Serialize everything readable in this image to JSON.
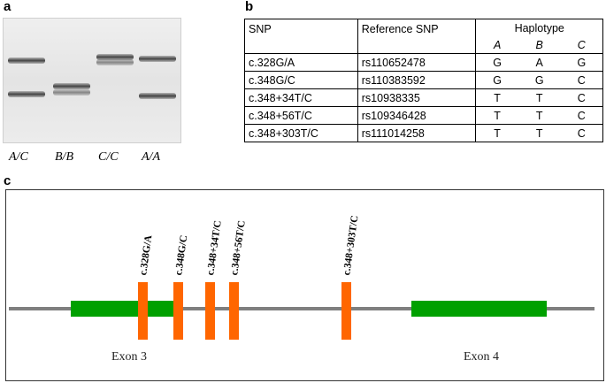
{
  "panels": {
    "a": {
      "letter": "a",
      "lanes": [
        {
          "label": "A/C",
          "bands": [
            "upper",
            "lower"
          ]
        },
        {
          "label": "B/B",
          "bands": [
            "middle"
          ]
        },
        {
          "label": "C/C",
          "bands": [
            "upper"
          ]
        },
        {
          "label": "A/A",
          "bands": [
            "upper",
            "lower"
          ]
        }
      ]
    },
    "b": {
      "letter": "b",
      "headers": {
        "snp": "SNP",
        "ref": "Reference SNP",
        "haplotype": "Haplotype"
      },
      "haplotypes": [
        "A",
        "B",
        "C"
      ],
      "rows": [
        {
          "snp": "c.328G/A",
          "ref": "rs110652478",
          "a": "G",
          "b": "A",
          "c": "G"
        },
        {
          "snp": "c.348G/C",
          "ref": "rs110383592",
          "a": "G",
          "b": "G",
          "c": "C"
        },
        {
          "snp": "c.348+34T/C",
          "ref": "rs10938335",
          "a": "T",
          "b": "T",
          "c": "C"
        },
        {
          "snp": "c.348+56T/C",
          "ref": "rs109346428",
          "a": "T",
          "b": "T",
          "c": "C"
        },
        {
          "snp": "c.348+303T/C",
          "ref": "rs111014258",
          "a": "T",
          "b": "T",
          "c": "C"
        }
      ]
    },
    "c": {
      "letter": "c",
      "snp_labels": [
        "c.328G/A",
        "c.348G/C",
        "c.348+34T/C",
        "c.348+56T/C",
        "c.348+303T/C"
      ],
      "exons": [
        "Exon 3",
        "Exon 4"
      ],
      "colors": {
        "exon": "#00a000",
        "snp": "#ff6600",
        "intron": "#7f7f7f"
      }
    }
  }
}
